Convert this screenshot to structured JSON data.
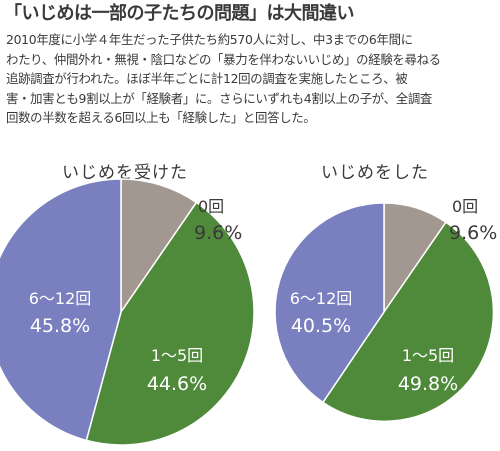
{
  "headline": "「いじめは一部の子たちの問題」は大間違い",
  "body_lines": [
    "2010年度に小学４年生だった子供たち約570人に対し、中3までの6年間に",
    "わたり、仲間外れ・無視・陰口などの「暴力を伴わないいじめ」の経験を尋ねる",
    "追跡調査が行われた。ほぼ半年ごとに計12回の調査を実施したところ、被",
    "害・加害とも9割以上が「経験者」に。さらにいずれも4割以上の子が、全調査",
    "回数の半数を超える6回以上も「経験した」と回答した。"
  ],
  "colors": {
    "zero": "#a39791",
    "one_to_five": "#4f8a3a",
    "six_to_twelve": "#7a7fc0"
  },
  "chart_data": [
    {
      "type": "pie",
      "title": "いじめを受けた",
      "slices": [
        {
          "name": "0回",
          "value": 9.6,
          "label": "9.6%",
          "color": "#a39791"
        },
        {
          "name": "1〜5回",
          "value": 44.6,
          "label": "44.6%",
          "color": "#4f8a3a"
        },
        {
          "name": "6〜12回",
          "value": 45.8,
          "label": "45.8%",
          "color": "#7a7fc0"
        }
      ]
    },
    {
      "type": "pie",
      "title": "いじめをした",
      "slices": [
        {
          "name": "0回",
          "value": 9.6,
          "label": "9.6%",
          "color": "#a39791"
        },
        {
          "name": "1〜5回",
          "value": 49.8,
          "label": "49.8%",
          "color": "#4f8a3a"
        },
        {
          "name": "6〜12回",
          "value": 40.5,
          "label": "40.5%",
          "color": "#7a7fc0"
        }
      ]
    }
  ]
}
